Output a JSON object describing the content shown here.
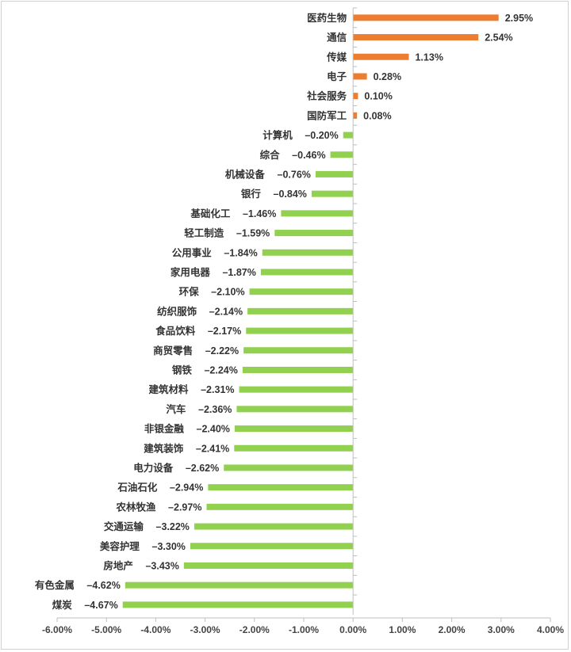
{
  "chart_data": {
    "type": "bar",
    "orientation": "horizontal",
    "title": "",
    "xlabel": "",
    "ylabel": "",
    "xlim": [
      -6.0,
      4.0
    ],
    "tick_step": 1.0,
    "grid": false,
    "legend": "none",
    "colors": {
      "positive": "#ED7D31",
      "negative": "#92D050",
      "axis": "#bfbfbf"
    },
    "tick_labels": [
      "-6.00%",
      "-5.00%",
      "-4.00%",
      "-3.00%",
      "-2.00%",
      "-1.00%",
      "0.00%",
      "1.00%",
      "2.00%",
      "3.00%",
      "4.00%"
    ],
    "categories": [
      "医药生物",
      "通信",
      "传媒",
      "电子",
      "社会服务",
      "国防军工",
      "计算机",
      "综合",
      "机械设备",
      "银行",
      "基础化工",
      "轻工制造",
      "公用事业",
      "家用电器",
      "环保",
      "纺织服饰",
      "食品饮料",
      "商贸零售",
      "钢铁",
      "建筑材料",
      "汽车",
      "非银金融",
      "建筑装饰",
      "电力设备",
      "石油石化",
      "农林牧渔",
      "交通运输",
      "美容护理",
      "房地产",
      "有色金属",
      "煤炭"
    ],
    "values": [
      2.95,
      2.54,
      1.13,
      0.28,
      0.1,
      0.08,
      -0.2,
      -0.46,
      -0.76,
      -0.84,
      -1.46,
      -1.59,
      -1.84,
      -1.87,
      -2.1,
      -2.14,
      -2.17,
      -2.22,
      -2.24,
      -2.31,
      -2.36,
      -2.4,
      -2.41,
      -2.62,
      -2.94,
      -2.97,
      -3.22,
      -3.3,
      -3.43,
      -4.62,
      -4.67
    ],
    "value_labels": [
      "2.95%",
      "2.54%",
      "1.13%",
      "0.28%",
      "0.10%",
      "0.08%",
      "–0.20%",
      "–0.46%",
      "–0.76%",
      "–0.84%",
      "–1.46%",
      "–1.59%",
      "–1.84%",
      "–1.87%",
      "–2.10%",
      "–2.14%",
      "–2.17%",
      "–2.22%",
      "–2.24%",
      "–2.31%",
      "–2.36%",
      "–2.40%",
      "–2.41%",
      "–2.62%",
      "–2.94%",
      "–2.97%",
      "–3.22%",
      "–3.30%",
      "–3.43%",
      "–4.62%",
      "–4.67%"
    ]
  }
}
